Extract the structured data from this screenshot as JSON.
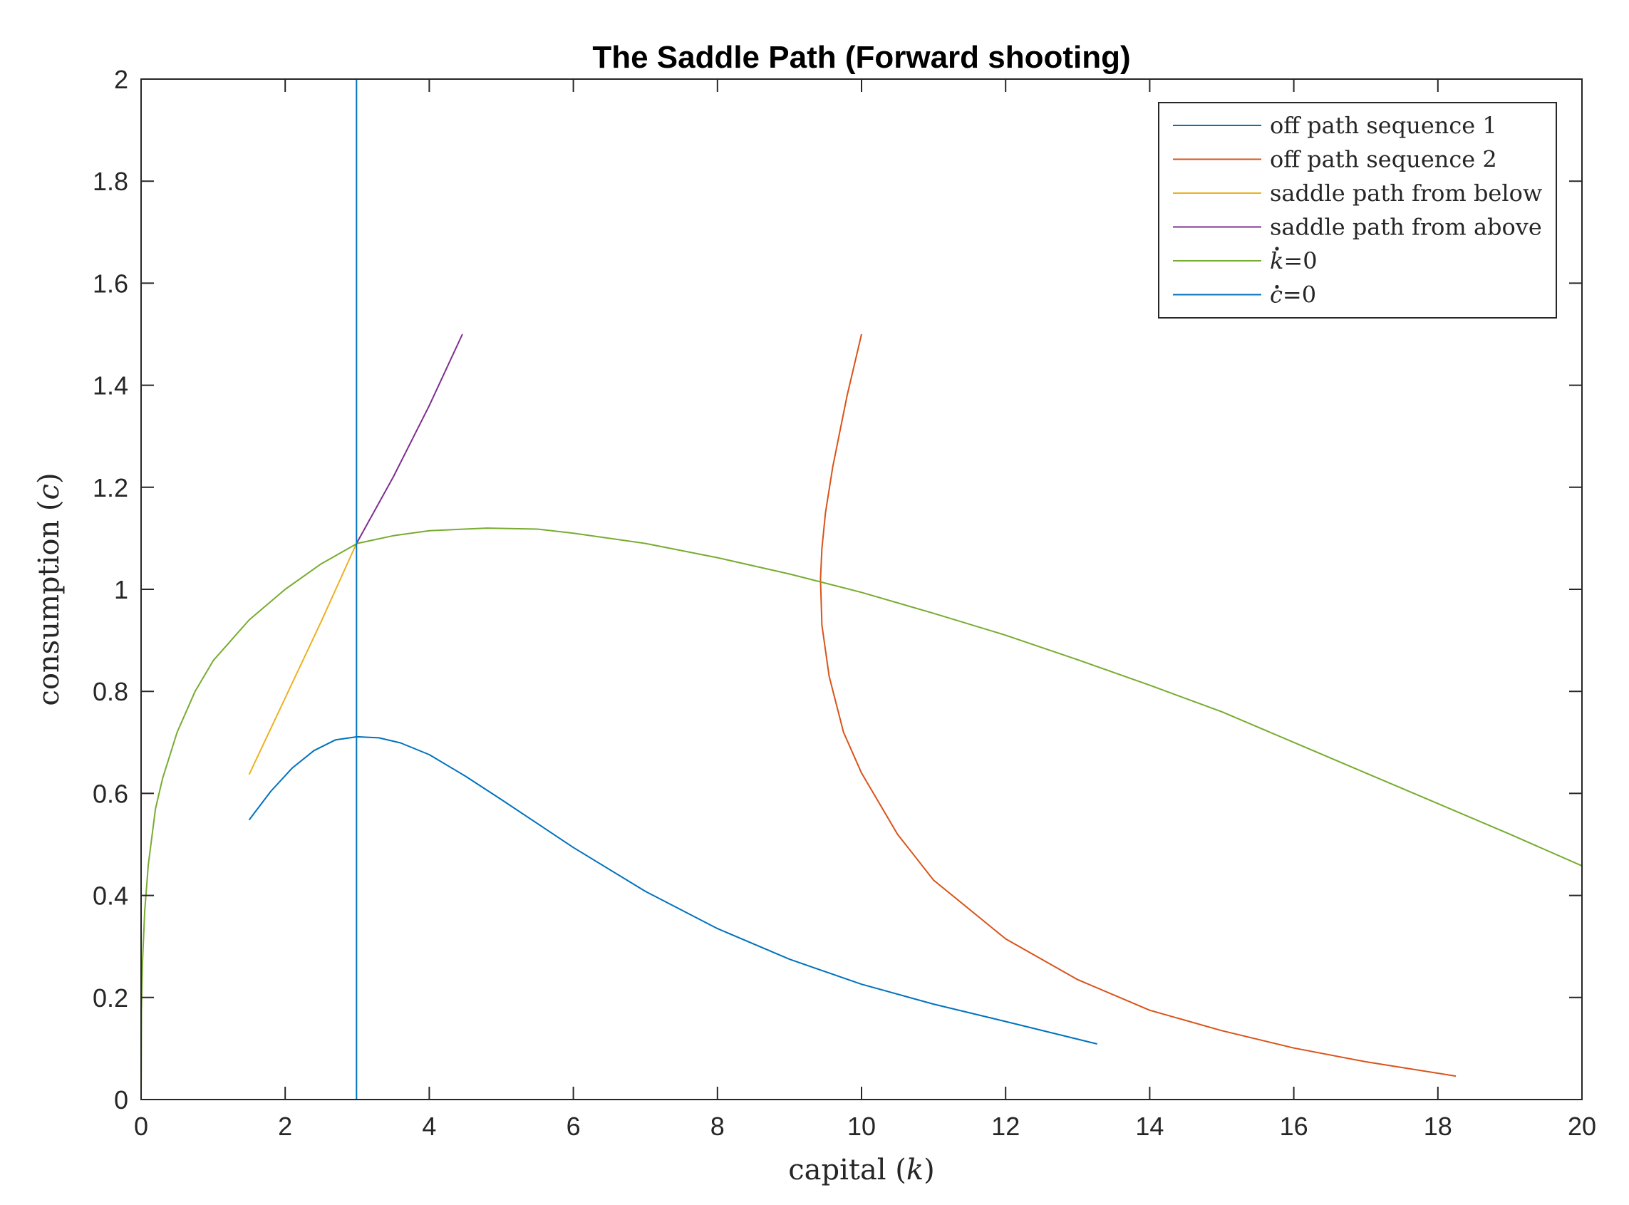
{
  "chart_data": {
    "type": "line",
    "title": "The Saddle Path (Forward shooting)",
    "xlabel": "capital (k)",
    "xlabel_prefix": "capital (",
    "xlabel_var": "k",
    "xlabel_suffix": ")",
    "ylabel": "consumption (c)",
    "ylabel_prefix": "consumption (",
    "ylabel_var": "c",
    "ylabel_suffix": ")",
    "xlim": [
      0,
      20
    ],
    "ylim": [
      0,
      2
    ],
    "xticks": [
      "0",
      "2",
      "4",
      "6",
      "8",
      "10",
      "12",
      "14",
      "16",
      "18",
      "20"
    ],
    "yticks": [
      "0",
      "0.2",
      "0.4",
      "0.6",
      "0.8",
      "1",
      "1.2",
      "1.4",
      "1.6",
      "1.8",
      "2"
    ],
    "grid": false,
    "legend_position": "top-right",
    "series": [
      {
        "name": "off path sequence 1",
        "color": "#0072BD",
        "points": [
          [
            1.5,
            0.548
          ],
          [
            1.8,
            0.604
          ],
          [
            2.1,
            0.65
          ],
          [
            2.4,
            0.684
          ],
          [
            2.7,
            0.705
          ],
          [
            3.0,
            0.711
          ],
          [
            3.3,
            0.709
          ],
          [
            3.6,
            0.699
          ],
          [
            4.0,
            0.676
          ],
          [
            4.5,
            0.634
          ],
          [
            5.0,
            0.588
          ],
          [
            6.0,
            0.494
          ],
          [
            7.0,
            0.408
          ],
          [
            8.0,
            0.335
          ],
          [
            9.0,
            0.275
          ],
          [
            10.0,
            0.226
          ],
          [
            11.0,
            0.187
          ],
          [
            12.0,
            0.153
          ],
          [
            13.27,
            0.109
          ]
        ]
      },
      {
        "name": "off path sequence 2",
        "color": "#D95319",
        "points": [
          [
            10.0,
            1.5
          ],
          [
            9.9,
            1.44
          ],
          [
            9.8,
            1.38
          ],
          [
            9.7,
            1.31
          ],
          [
            9.6,
            1.24
          ],
          [
            9.5,
            1.15
          ],
          [
            9.45,
            1.08
          ],
          [
            9.43,
            1.02
          ],
          [
            9.45,
            0.93
          ],
          [
            9.55,
            0.83
          ],
          [
            9.75,
            0.72
          ],
          [
            10.0,
            0.64
          ],
          [
            10.5,
            0.52
          ],
          [
            11.0,
            0.43
          ],
          [
            12.0,
            0.315
          ],
          [
            13.0,
            0.235
          ],
          [
            14.0,
            0.175
          ],
          [
            15.0,
            0.135
          ],
          [
            16.0,
            0.101
          ],
          [
            17.0,
            0.074
          ],
          [
            18.25,
            0.046
          ]
        ]
      },
      {
        "name": "saddle path from below",
        "color": "#EDB120",
        "points": [
          [
            1.5,
            0.637
          ],
          [
            2.0,
            0.787
          ],
          [
            2.5,
            0.937
          ],
          [
            2.99,
            1.09
          ]
        ]
      },
      {
        "name": "saddle path from above",
        "color": "#7E2F8E",
        "points": [
          [
            2.99,
            1.09
          ],
          [
            3.5,
            1.22
          ],
          [
            4.0,
            1.36
          ],
          [
            4.46,
            1.5
          ]
        ]
      },
      {
        "name": "k̇=0",
        "name_var": "k",
        "name_suffix": "=0",
        "color": "#77AC30",
        "points": [
          [
            0.0,
            0.0
          ],
          [
            0.005,
            0.17
          ],
          [
            0.02,
            0.27
          ],
          [
            0.05,
            0.37
          ],
          [
            0.1,
            0.46
          ],
          [
            0.2,
            0.57
          ],
          [
            0.3,
            0.63
          ],
          [
            0.5,
            0.72
          ],
          [
            0.75,
            0.8
          ],
          [
            1.0,
            0.86
          ],
          [
            1.5,
            0.94
          ],
          [
            2.0,
            1.0
          ],
          [
            2.5,
            1.05
          ],
          [
            3.0,
            1.09
          ],
          [
            3.5,
            1.105
          ],
          [
            4.0,
            1.115
          ],
          [
            4.8,
            1.12
          ],
          [
            5.5,
            1.118
          ],
          [
            6.0,
            1.11
          ],
          [
            7.0,
            1.09
          ],
          [
            8.0,
            1.062
          ],
          [
            9.0,
            1.03
          ],
          [
            10.0,
            0.994
          ],
          [
            11.0,
            0.953
          ],
          [
            12.0,
            0.91
          ],
          [
            13.0,
            0.862
          ],
          [
            14.0,
            0.812
          ],
          [
            15.0,
            0.76
          ],
          [
            16.0,
            0.7
          ],
          [
            17.0,
            0.64
          ],
          [
            18.0,
            0.58
          ],
          [
            19.0,
            0.52
          ],
          [
            20.0,
            0.458
          ]
        ]
      },
      {
        "name": "ċ=0",
        "name_var": "c",
        "name_suffix": "=0",
        "color": "#0072BD",
        "points": [
          [
            2.99,
            0.0
          ],
          [
            2.99,
            2.0
          ]
        ]
      }
    ]
  }
}
